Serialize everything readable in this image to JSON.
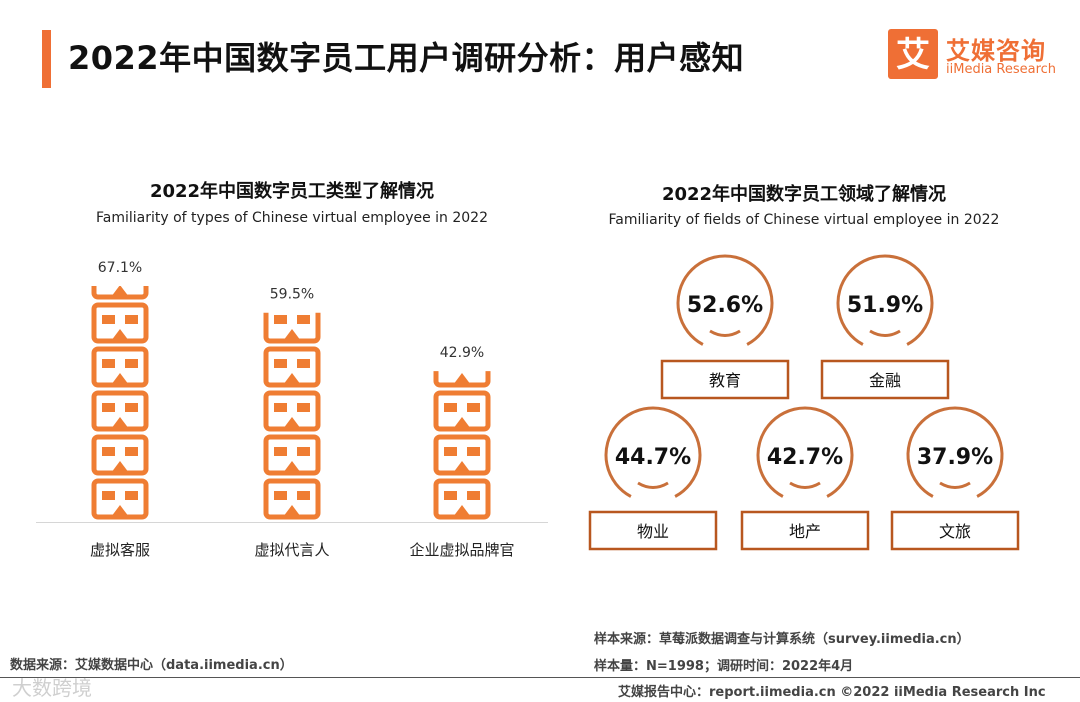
{
  "header": {
    "title": "2022年中国数字员工用户调研分析：用户感知"
  },
  "logo": {
    "cn": "艾媒咨询",
    "en": "iiMedia Research",
    "mark": "艾"
  },
  "colors": {
    "accent": "#ef6f35",
    "bar": "#ef7d33",
    "circle": "#c9703a",
    "box": "#b8571f"
  },
  "chart_data": [
    {
      "type": "bar",
      "title": "2022年中国数字员工类型了解情况",
      "subtitle": "Familiarity of types of Chinese virtual employee in 2022",
      "categories": [
        "虚拟客服",
        "虚拟代言人",
        "企业虚拟品牌官"
      ],
      "values": [
        67.1,
        59.5,
        42.9
      ],
      "value_labels": [
        "67.1%",
        "59.5%",
        "42.9%"
      ],
      "ylim": [
        0,
        67.1
      ],
      "xlabel": "",
      "ylabel": ""
    },
    {
      "type": "table",
      "title": "2022年中国数字员工领域了解情况",
      "subtitle": "Familiarity of fields of Chinese virtual employee in 2022",
      "categories": [
        "教育",
        "金融",
        "物业",
        "地产",
        "文旅"
      ],
      "values": [
        52.6,
        51.9,
        44.7,
        42.7,
        37.9
      ],
      "value_labels": [
        "52.6%",
        "51.9%",
        "44.7%",
        "42.7%",
        "37.9%"
      ]
    }
  ],
  "footer": {
    "source_left": "数据来源：艾媒数据中心（data.iimedia.cn）",
    "sample_source": "样本来源：草莓派数据调查与计算系统（survey.iimedia.cn）",
    "sample_size": "样本量：N=1998；调研时间：2022年4月",
    "report": "艾媒报告中心：report.iimedia.cn  ©2022 iiMedia Research Inc",
    "watermark": "大数跨境"
  }
}
